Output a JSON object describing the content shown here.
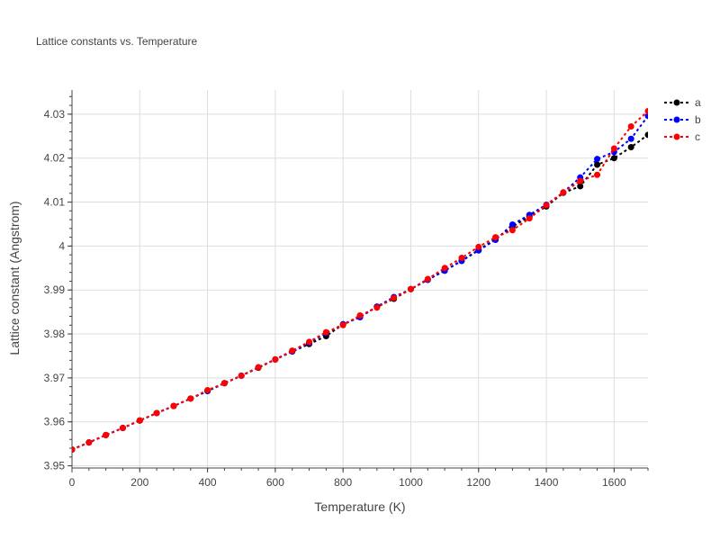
{
  "chart_data": {
    "type": "line",
    "title": "Lattice constants vs. Temperature",
    "xlabel": "Temperature (K)",
    "ylabel": "Lattice constant (Angstrom)",
    "xlim": [
      0,
      1700
    ],
    "ylim": [
      3.9495,
      4.0355
    ],
    "xticks": [
      0,
      200,
      400,
      600,
      800,
      1000,
      1200,
      1400,
      1600
    ],
    "yticks": [
      3.95,
      3.96,
      3.97,
      3.98,
      3.99,
      4.0,
      4.01,
      4.02,
      4.03
    ],
    "yticklabels": [
      "3.95",
      "3.96",
      "3.97",
      "3.98",
      "3.99",
      "4",
      "4.01",
      "4.02",
      "4.03"
    ],
    "grid": true,
    "legend_position": "top-right",
    "x": [
      0,
      50,
      100,
      150,
      200,
      250,
      300,
      350,
      400,
      450,
      500,
      550,
      600,
      650,
      700,
      750,
      800,
      850,
      900,
      950,
      1000,
      1050,
      1100,
      1150,
      1200,
      1250,
      1300,
      1350,
      1400,
      1450,
      1500,
      1550,
      1600,
      1650,
      1700
    ],
    "series": [
      {
        "name": "a",
        "color": "#000000",
        "values": [
          3.9537,
          3.9553,
          3.957,
          3.9586,
          3.9603,
          3.962,
          3.9636,
          3.9653,
          3.967,
          3.9688,
          3.9705,
          3.9723,
          3.9742,
          3.976,
          3.9777,
          3.9795,
          3.9822,
          3.9839,
          3.9862,
          3.988,
          3.9902,
          3.9924,
          3.9944,
          3.9967,
          3.9991,
          4.0016,
          4.0044,
          4.0067,
          4.009,
          4.0121,
          4.0136,
          4.0185,
          4.02,
          4.0225,
          4.0253
        ]
      },
      {
        "name": "b",
        "color": "#0000ff",
        "values": [
          3.9537,
          3.9553,
          3.957,
          3.9586,
          3.9603,
          3.962,
          3.9636,
          3.9653,
          3.967,
          3.9688,
          3.9705,
          3.9724,
          3.9742,
          3.976,
          3.978,
          3.9802,
          3.9822,
          3.9838,
          3.9862,
          3.9884,
          3.9902,
          3.9923,
          3.9944,
          3.9966,
          3.999,
          4.0014,
          4.0049,
          4.0071,
          4.0094,
          4.0122,
          4.0156,
          4.0198,
          4.0214,
          4.0244,
          4.0296
        ]
      },
      {
        "name": "c",
        "color": "#ff0000",
        "values": [
          3.9537,
          3.9553,
          3.957,
          3.9586,
          3.9603,
          3.962,
          3.9636,
          3.9653,
          3.9672,
          3.9688,
          3.9705,
          3.9724,
          3.9742,
          3.9762,
          3.9782,
          3.9804,
          3.982,
          3.9842,
          3.986,
          3.9882,
          3.9902,
          3.9925,
          3.995,
          3.9973,
          3.9998,
          4.002,
          4.0036,
          4.0063,
          4.0093,
          4.0122,
          4.0148,
          4.0162,
          4.0222,
          4.0272,
          4.0307
        ]
      }
    ]
  }
}
